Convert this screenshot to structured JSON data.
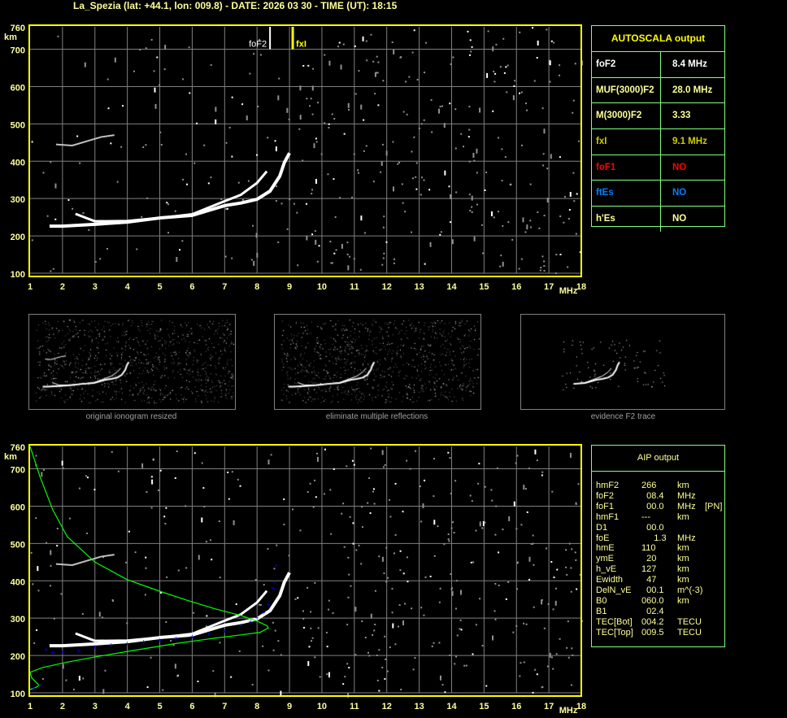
{
  "header": {
    "title": "La_Spezia (lat: +44.1, lon: 009.8) - DATE: 2026 03 30 - TIME (UT): 18:15"
  },
  "colors": {
    "frame": "#ffff00",
    "grid": "#808080",
    "trace": "#ffffff",
    "noise": "#909090",
    "profile": "#00ff00",
    "aip_points": "#0000ff",
    "table_border": "#80ff80",
    "foF1": "#ff0000",
    "ftEs": "#0080ff",
    "fxI": "#cccc00"
  },
  "chart_data": [
    {
      "type": "scatter",
      "title": "",
      "xlabel": "MHz",
      "ylabel": "km",
      "xlim": [
        1,
        18
      ],
      "ylim": [
        100,
        760
      ],
      "xticks": [
        "1",
        "2",
        "3",
        "4",
        "5",
        "6",
        "7",
        "8",
        "9",
        "10",
        "11",
        "12",
        "13",
        "14",
        "15",
        "16",
        "17",
        "18"
      ],
      "yticks": [
        "100",
        "200",
        "300",
        "400",
        "500",
        "600",
        "700",
        "760"
      ],
      "grid": true,
      "markers": [
        {
          "label": "foF2",
          "x": 8.4,
          "color": "#ffffff"
        },
        {
          "label": "fxI",
          "x": 9.1,
          "color": "#ffff00"
        }
      ],
      "series": [
        {
          "values": [
            [
              1.6,
              226
            ],
            [
              2,
              226
            ],
            [
              3,
              231
            ],
            [
              4,
              237
            ],
            [
              5,
              248
            ],
            [
              6,
              255
            ],
            [
              7,
              281
            ],
            [
              7.5,
              288
            ],
            [
              8,
              298
            ],
            [
              8.4,
              320
            ],
            [
              8.7,
              360
            ],
            [
              8.84,
              396
            ],
            [
              9,
              422
            ]
          ]
        },
        {
          "values": [
            [
              2.4,
              259
            ],
            [
              3,
              239
            ],
            [
              4,
              240
            ],
            [
              5,
              248
            ],
            [
              6,
              258
            ],
            [
              7,
              293
            ],
            [
              7.5,
              310
            ],
            [
              8,
              342
            ],
            [
              8.3,
              373
            ]
          ]
        },
        {
          "values": [
            [
              1.8,
              445
            ],
            [
              2.3,
              442
            ],
            [
              2.8,
              455
            ],
            [
              3.2,
              465
            ],
            [
              3.6,
              470
            ]
          ]
        }
      ]
    },
    {
      "type": "line",
      "title": "",
      "xlabel": "MHz",
      "ylabel": "km",
      "xlim": [
        1,
        18
      ],
      "ylim": [
        100,
        760
      ],
      "xticks": [
        "1",
        "2",
        "3",
        "4",
        "5",
        "6",
        "7",
        "8",
        "9",
        "10",
        "11",
        "12",
        "13",
        "14",
        "15",
        "16",
        "17",
        "18"
      ],
      "yticks": [
        "100",
        "200",
        "300",
        "400",
        "500",
        "600",
        "700",
        "760"
      ],
      "grid": true,
      "series": [
        {
          "values": [
            [
              1.6,
              226
            ],
            [
              2,
              226
            ],
            [
              3,
              231
            ],
            [
              4,
              237
            ],
            [
              5,
              248
            ],
            [
              6,
              255
            ],
            [
              7,
              281
            ],
            [
              7.5,
              288
            ],
            [
              8,
              298
            ],
            [
              8.4,
              320
            ],
            [
              8.7,
              360
            ],
            [
              8.84,
              396
            ],
            [
              9,
              422
            ]
          ]
        },
        {
          "values": [
            [
              2.4,
              259
            ],
            [
              3,
              239
            ],
            [
              4,
              240
            ],
            [
              5,
              248
            ],
            [
              6,
              258
            ],
            [
              7,
              293
            ],
            [
              7.5,
              310
            ],
            [
              8,
              342
            ],
            [
              8.3,
              373
            ]
          ]
        },
        {
          "values": [
            [
              1.8,
              445
            ],
            [
              2.3,
              442
            ],
            [
              2.8,
              455
            ],
            [
              3.2,
              465
            ],
            [
              3.6,
              470
            ]
          ]
        },
        {
          "values": [
            [
              1,
              760
            ],
            [
              1.3,
              680
            ],
            [
              1.7,
              590
            ],
            [
              2.15,
              518
            ],
            [
              3,
              450
            ],
            [
              4,
              403
            ],
            [
              5,
              372
            ],
            [
              5.84,
              348
            ],
            [
              6.7,
              325
            ],
            [
              7.5,
              307
            ],
            [
              8,
              292
            ],
            [
              8.3,
              280
            ],
            [
              8.35,
              274
            ],
            [
              8.1,
              262
            ],
            [
              7.5,
              255
            ],
            [
              6.66,
              246
            ],
            [
              5.5,
              232
            ],
            [
              4.16,
              213
            ],
            [
              3,
              196
            ],
            [
              2.08,
              181
            ],
            [
              1.4,
              168
            ],
            [
              1,
              155
            ],
            [
              1.05,
              140
            ],
            [
              1.28,
              120
            ],
            [
              1.15,
              113
            ],
            [
              1,
              109
            ]
          ]
        },
        {
          "values": [
            [
              1.1,
              112
            ],
            [
              1.3,
              120
            ],
            [
              1.5,
              215
            ],
            [
              1.7,
              208
            ],
            [
              2,
              208
            ],
            [
              2.5,
              212
            ],
            [
              3,
              222
            ],
            [
              3.5,
              227
            ],
            [
              4,
              232
            ],
            [
              4.5,
              236
            ],
            [
              5,
              240
            ],
            [
              5.5,
              245
            ],
            [
              6,
              250
            ],
            [
              6.5,
              257
            ],
            [
              7,
              265
            ],
            [
              7.5,
              280
            ],
            [
              7.8,
              290
            ],
            [
              8,
              300
            ],
            [
              8.2,
              315
            ],
            [
              8.35,
              335
            ],
            [
              8.5,
              380
            ],
            [
              8.55,
              397
            ],
            [
              8.6,
              440
            ]
          ]
        }
      ]
    }
  ],
  "thumbnails": [
    {
      "caption": "original ionogram resized"
    },
    {
      "caption": "eliminate multiple reflections"
    },
    {
      "caption": "evidence F2 trace"
    }
  ],
  "autoscala": {
    "title": "AUTOSCALA output",
    "rows": [
      {
        "label": "foF2",
        "value": "8.4 MHz",
        "color": "#ffffff"
      },
      {
        "label": "MUF(3000)F2",
        "value": "28.0 MHz",
        "color": "#ffff99"
      },
      {
        "label": "M(3000)F2",
        "value": "3.33",
        "color": "#ffff99"
      },
      {
        "label": "fxI",
        "value": "9.1 MHz",
        "color": "#cccc00"
      },
      {
        "label": "foF1",
        "value": "NO",
        "color": "#ff0000"
      },
      {
        "label": "ftEs",
        "value": "NO",
        "color": "#0080ff"
      },
      {
        "label": "h'Es",
        "value": "NO",
        "color": "#ffff99"
      }
    ]
  },
  "aip": {
    "title": "AIP output",
    "rows": [
      {
        "name": "hmF2",
        "value": "266",
        "unit": "km",
        "extra": ""
      },
      {
        "name": "foF2",
        "value": "  08.4",
        "unit": "MHz",
        "extra": ""
      },
      {
        "name": "foF1",
        "value": "  00.0",
        "unit": "MHz",
        "extra": "[PN]"
      },
      {
        "name": "hmF1",
        "value": "---",
        "unit": "km",
        "extra": ""
      },
      {
        "name": "D1",
        "value": "  00.0",
        "unit": "",
        "extra": ""
      },
      {
        "name": "foE",
        "value": "     1.3",
        "unit": "MHz",
        "extra": ""
      },
      {
        "name": "hmE",
        "value": "110",
        "unit": "km",
        "extra": ""
      },
      {
        "name": "ymE",
        "value": "  20",
        "unit": "km",
        "extra": ""
      },
      {
        "name": "h_vE",
        "value": "127",
        "unit": "km",
        "extra": ""
      },
      {
        "name": "Ewidth",
        "value": "  47",
        "unit": "km",
        "extra": ""
      },
      {
        "name": "DelN_vE",
        "value": "  00.1",
        "unit": "m^(-3)",
        "extra": ""
      },
      {
        "name": "B0",
        "value": "060.0",
        "unit": "km",
        "extra": ""
      },
      {
        "name": "B1",
        "value": "  02.4",
        "unit": "",
        "extra": ""
      },
      {
        "name": "TEC[Bot]",
        "value": "004.2",
        "unit": "TECU",
        "extra": ""
      },
      {
        "name": "TEC[Top]",
        "value": "009.5",
        "unit": "TECU",
        "extra": ""
      }
    ]
  }
}
